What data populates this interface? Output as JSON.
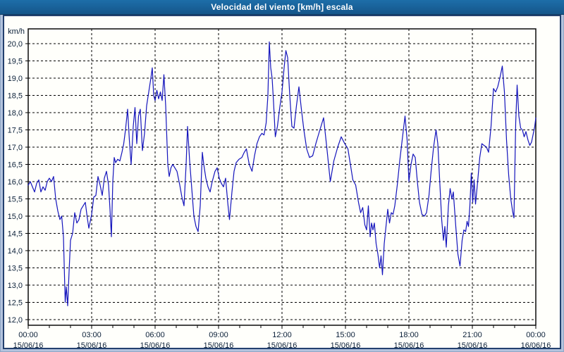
{
  "window": {
    "title": "Velocidad del viento [km/h] escala"
  },
  "colors": {
    "titlebar_bg": "#15568a",
    "titlebar_text": "#ffffff",
    "frame_bg": "#b3c3dd",
    "frame_border": "#23406e",
    "plot_bg": "#fffffb",
    "grid": "#000000",
    "line": "#1414bc",
    "label_text": "#0a1f38"
  },
  "chart_data": {
    "type": "line",
    "title": "Velocidad del viento [km/h] escala",
    "xlabel": "",
    "ylabel": "km/h",
    "ylim": [
      12.0,
      20.0
    ],
    "ytick_step": 0.5,
    "ytick_labels": [
      "20,0",
      "19,5",
      "19,0",
      "18,5",
      "18,0",
      "17,5",
      "17,0",
      "16,5",
      "16,0",
      "15,5",
      "15,0",
      "14,5",
      "14,0",
      "13,5",
      "13,0",
      "12,5",
      "12,0"
    ],
    "x_range_hours": [
      0,
      24
    ],
    "x_minor_tick_every_hours": 1,
    "grid": "dashed, horizontal every 0.5 km/h, vertical every 3 h",
    "legend": "none",
    "x_major_ticks": [
      {
        "hour": 0,
        "time": "00:00",
        "date": "15/06/16"
      },
      {
        "hour": 3,
        "time": "03:00",
        "date": "15/06/16"
      },
      {
        "hour": 6,
        "time": "06:00",
        "date": "15/06/16"
      },
      {
        "hour": 9,
        "time": "09:00",
        "date": "15/06/16"
      },
      {
        "hour": 12,
        "time": "12:00",
        "date": "15/06/16"
      },
      {
        "hour": 15,
        "time": "15:00",
        "date": "15/06/16"
      },
      {
        "hour": 18,
        "time": "18:00",
        "date": "15/06/16"
      },
      {
        "hour": 21,
        "time": "21:00",
        "date": "15/06/16"
      },
      {
        "hour": 24,
        "time": "00:00",
        "date": "16/06/16"
      }
    ],
    "series": [
      {
        "name": "Velocidad del viento",
        "unit": "km/h",
        "color": "#1414bc",
        "points": [
          [
            "00:00",
            15.9
          ],
          [
            "00:06",
            16.0
          ],
          [
            "00:12",
            15.85
          ],
          [
            "00:18",
            15.7
          ],
          [
            "00:24",
            15.95
          ],
          [
            "00:30",
            16.05
          ],
          [
            "00:36",
            15.7
          ],
          [
            "00:42",
            15.85
          ],
          [
            "00:48",
            15.75
          ],
          [
            "00:54",
            16.0
          ],
          [
            "01:00",
            16.1
          ],
          [
            "01:06",
            16.0
          ],
          [
            "01:12",
            16.15
          ],
          [
            "01:18",
            15.5
          ],
          [
            "01:24",
            15.15
          ],
          [
            "01:30",
            14.9
          ],
          [
            "01:35",
            15.0
          ],
          [
            "01:40",
            14.4
          ],
          [
            "01:45",
            12.5
          ],
          [
            "01:48",
            12.95
          ],
          [
            "01:52",
            12.4
          ],
          [
            "01:56",
            13.4
          ],
          [
            "02:00",
            14.3
          ],
          [
            "02:06",
            14.5
          ],
          [
            "02:12",
            15.1
          ],
          [
            "02:18",
            14.8
          ],
          [
            "02:24",
            14.9
          ],
          [
            "02:30",
            15.2
          ],
          [
            "02:36",
            15.3
          ],
          [
            "02:42",
            15.4
          ],
          [
            "02:47",
            15.0
          ],
          [
            "02:52",
            14.65
          ],
          [
            "03:00",
            15.05
          ],
          [
            "03:06",
            15.55
          ],
          [
            "03:12",
            15.6
          ],
          [
            "03:18",
            16.15
          ],
          [
            "03:24",
            15.9
          ],
          [
            "03:30",
            15.6
          ],
          [
            "03:36",
            16.1
          ],
          [
            "03:42",
            16.3
          ],
          [
            "03:48",
            15.9
          ],
          [
            "03:52",
            15.2
          ],
          [
            "03:56",
            14.4
          ],
          [
            "04:00",
            16.0
          ],
          [
            "04:04",
            16.7
          ],
          [
            "04:08",
            16.55
          ],
          [
            "04:14",
            16.65
          ],
          [
            "04:20",
            16.6
          ],
          [
            "04:26",
            16.85
          ],
          [
            "04:31",
            17.1
          ],
          [
            "04:36",
            17.5
          ],
          [
            "04:42",
            18.1
          ],
          [
            "04:47",
            17.2
          ],
          [
            "04:52",
            16.5
          ],
          [
            "04:58",
            17.6
          ],
          [
            "05:03",
            18.15
          ],
          [
            "05:08",
            17.1
          ],
          [
            "05:13",
            17.9
          ],
          [
            "05:18",
            18.1
          ],
          [
            "05:24",
            16.9
          ],
          [
            "05:30",
            17.4
          ],
          [
            "05:36",
            18.2
          ],
          [
            "05:42",
            18.6
          ],
          [
            "05:48",
            19.0
          ],
          [
            "05:52",
            19.3
          ],
          [
            "05:56",
            18.5
          ],
          [
            "06:00",
            18.35
          ],
          [
            "06:05",
            18.65
          ],
          [
            "06:10",
            18.4
          ],
          [
            "06:15",
            18.6
          ],
          [
            "06:20",
            18.35
          ],
          [
            "06:25",
            19.1
          ],
          [
            "06:30",
            18.2
          ],
          [
            "06:36",
            16.5
          ],
          [
            "06:40",
            16.15
          ],
          [
            "06:45",
            16.4
          ],
          [
            "06:50",
            16.5
          ],
          [
            "06:56",
            16.4
          ],
          [
            "07:02",
            16.3
          ],
          [
            "07:10",
            15.9
          ],
          [
            "07:16",
            15.55
          ],
          [
            "07:22",
            15.3
          ],
          [
            "07:28",
            16.5
          ],
          [
            "07:32",
            17.6
          ],
          [
            "07:38",
            16.6
          ],
          [
            "07:44",
            15.8
          ],
          [
            "07:50",
            15.0
          ],
          [
            "07:56",
            14.7
          ],
          [
            "08:02",
            14.55
          ],
          [
            "08:08",
            15.3
          ],
          [
            "08:14",
            16.85
          ],
          [
            "08:18",
            16.5
          ],
          [
            "08:24",
            16.1
          ],
          [
            "08:30",
            15.85
          ],
          [
            "08:36",
            15.7
          ],
          [
            "08:42",
            16.0
          ],
          [
            "08:50",
            16.3
          ],
          [
            "08:56",
            16.4
          ],
          [
            "09:02",
            16.1
          ],
          [
            "09:08",
            15.95
          ],
          [
            "09:14",
            15.85
          ],
          [
            "09:20",
            16.1
          ],
          [
            "09:26",
            15.4
          ],
          [
            "09:31",
            14.9
          ],
          [
            "09:38",
            15.7
          ],
          [
            "09:44",
            16.3
          ],
          [
            "09:50",
            16.55
          ],
          [
            "09:58",
            16.65
          ],
          [
            "10:06",
            16.7
          ],
          [
            "10:13",
            16.85
          ],
          [
            "10:19",
            16.95
          ],
          [
            "10:27",
            16.5
          ],
          [
            "10:35",
            16.3
          ],
          [
            "10:42",
            16.75
          ],
          [
            "10:49",
            17.1
          ],
          [
            "10:56",
            17.3
          ],
          [
            "11:03",
            17.4
          ],
          [
            "11:09",
            17.35
          ],
          [
            "11:15",
            17.7
          ],
          [
            "11:20",
            18.5
          ],
          [
            "11:24",
            20.05
          ],
          [
            "11:28",
            19.3
          ],
          [
            "11:32",
            19.0
          ],
          [
            "11:36",
            18.3
          ],
          [
            "11:41",
            17.3
          ],
          [
            "11:47",
            17.6
          ],
          [
            "11:53",
            18.1
          ],
          [
            "12:00",
            18.6
          ],
          [
            "12:06",
            19.3
          ],
          [
            "12:11",
            19.8
          ],
          [
            "12:16",
            19.6
          ],
          [
            "12:22",
            18.5
          ],
          [
            "12:28",
            17.6
          ],
          [
            "12:34",
            17.55
          ],
          [
            "12:41",
            18.2
          ],
          [
            "12:48",
            18.75
          ],
          [
            "12:55",
            18.1
          ],
          [
            "13:02",
            17.5
          ],
          [
            "13:10",
            16.95
          ],
          [
            "13:18",
            16.7
          ],
          [
            "13:27",
            16.75
          ],
          [
            "13:36",
            17.1
          ],
          [
            "13:46",
            17.45
          ],
          [
            "13:58",
            17.85
          ],
          [
            "14:08",
            16.9
          ],
          [
            "14:17",
            16.0
          ],
          [
            "14:27",
            16.6
          ],
          [
            "14:38",
            17.0
          ],
          [
            "14:48",
            17.3
          ],
          [
            "14:58",
            17.1
          ],
          [
            "15:07",
            16.95
          ],
          [
            "15:14",
            16.5
          ],
          [
            "15:21",
            16.05
          ],
          [
            "15:29",
            15.9
          ],
          [
            "15:37",
            15.4
          ],
          [
            "15:43",
            15.1
          ],
          [
            "15:49",
            15.25
          ],
          [
            "15:55",
            14.75
          ],
          [
            "16:00",
            14.6
          ],
          [
            "16:05",
            15.3
          ],
          [
            "16:10",
            14.4
          ],
          [
            "16:14",
            14.8
          ],
          [
            "16:18",
            14.6
          ],
          [
            "16:22",
            14.8
          ],
          [
            "16:27",
            14.2
          ],
          [
            "16:32",
            13.9
          ],
          [
            "16:37",
            13.5
          ],
          [
            "16:41",
            13.85
          ],
          [
            "16:45",
            13.3
          ],
          [
            "16:50",
            14.2
          ],
          [
            "16:55",
            14.7
          ],
          [
            "17:00",
            15.2
          ],
          [
            "17:05",
            14.8
          ],
          [
            "17:10",
            15.1
          ],
          [
            "17:15",
            15.05
          ],
          [
            "17:20",
            15.3
          ],
          [
            "17:27",
            15.9
          ],
          [
            "17:34",
            16.6
          ],
          [
            "17:42",
            17.3
          ],
          [
            "17:49",
            17.9
          ],
          [
            "17:55",
            17.2
          ],
          [
            "18:00",
            16.0
          ],
          [
            "18:06",
            16.5
          ],
          [
            "18:12",
            16.8
          ],
          [
            "18:18",
            16.7
          ],
          [
            "18:24",
            16.0
          ],
          [
            "18:30",
            15.4
          ],
          [
            "18:37",
            15.05
          ],
          [
            "18:44",
            15.0
          ],
          [
            "18:50",
            15.1
          ],
          [
            "18:57",
            15.6
          ],
          [
            "19:03",
            16.3
          ],
          [
            "19:10",
            17.0
          ],
          [
            "19:17",
            17.5
          ],
          [
            "19:22",
            17.1
          ],
          [
            "19:27",
            16.1
          ],
          [
            "19:33",
            14.9
          ],
          [
            "19:38",
            14.3
          ],
          [
            "19:42",
            14.7
          ],
          [
            "19:46",
            14.1
          ],
          [
            "19:52",
            15.3
          ],
          [
            "19:57",
            15.8
          ],
          [
            "20:02",
            15.5
          ],
          [
            "20:06",
            15.7
          ],
          [
            "20:13",
            14.7
          ],
          [
            "20:19",
            13.9
          ],
          [
            "20:25",
            13.55
          ],
          [
            "20:31",
            14.3
          ],
          [
            "20:36",
            14.6
          ],
          [
            "20:41",
            14.55
          ],
          [
            "20:45",
            14.85
          ],
          [
            "20:49",
            14.7
          ],
          [
            "20:53",
            15.3
          ],
          [
            "20:57",
            16.25
          ],
          [
            "21:01",
            15.4
          ],
          [
            "21:05",
            16.05
          ],
          [
            "21:09",
            15.35
          ],
          [
            "21:15",
            16.0
          ],
          [
            "21:21",
            16.7
          ],
          [
            "21:27",
            17.1
          ],
          [
            "21:33",
            17.05
          ],
          [
            "21:40",
            17.0
          ],
          [
            "21:46",
            16.85
          ],
          [
            "21:53",
            17.6
          ],
          [
            "22:00",
            18.7
          ],
          [
            "22:06",
            18.6
          ],
          [
            "22:12",
            18.75
          ],
          [
            "22:18",
            19.0
          ],
          [
            "22:25",
            19.35
          ],
          [
            "22:31",
            18.6
          ],
          [
            "22:37",
            17.2
          ],
          [
            "22:43",
            16.2
          ],
          [
            "22:49",
            15.5
          ],
          [
            "22:54",
            15.15
          ],
          [
            "22:58",
            14.95
          ],
          [
            "23:03",
            17.7
          ],
          [
            "23:07",
            18.8
          ],
          [
            "23:12",
            17.9
          ],
          [
            "23:17",
            17.55
          ],
          [
            "23:22",
            17.5
          ],
          [
            "23:27",
            17.3
          ],
          [
            "23:32",
            17.45
          ],
          [
            "23:38",
            17.2
          ],
          [
            "23:43",
            17.05
          ],
          [
            "23:48",
            17.15
          ],
          [
            "23:53",
            17.4
          ],
          [
            "23:57",
            17.6
          ],
          [
            "24:00",
            17.85
          ]
        ]
      }
    ]
  }
}
